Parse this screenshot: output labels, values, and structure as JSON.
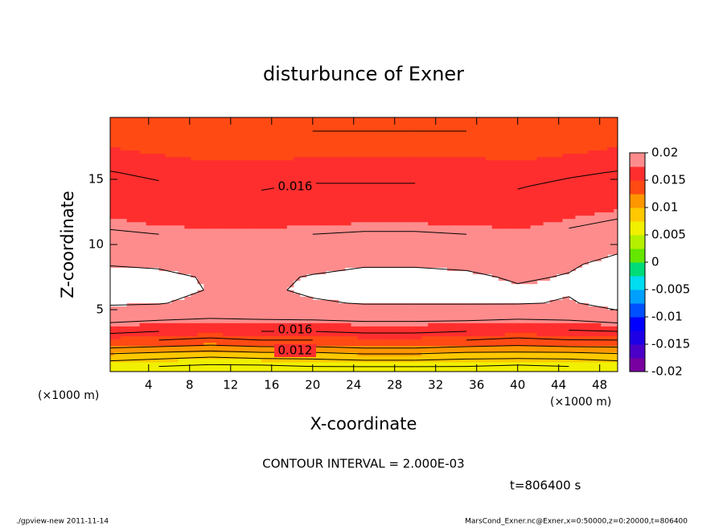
{
  "chart_data": {
    "type": "contour",
    "title": "disturbunce of Exner",
    "xlabel": "X-coordinate",
    "ylabel": "Z-coordinate",
    "x_unit": "(×1000 m)",
    "contour_interval_text": "CONTOUR INTERVAL = 2.000E-03",
    "time_text": "t=806400 s",
    "footer_left": "./gpview-new  2011-11-14",
    "footer_right": "MarsCond_Exner.nc@Exner,x=0:50000,z=0:20000,t=806400",
    "xlim": [
      0.25,
      49.75
    ],
    "ylim": [
      0.25,
      19.75
    ],
    "xticks": [
      4,
      8,
      12,
      16,
      20,
      24,
      28,
      32,
      36,
      40,
      44,
      48
    ],
    "yticks": [
      5,
      10,
      15
    ],
    "x": [
      0,
      5,
      10,
      15,
      20,
      25,
      30,
      35,
      40,
      45,
      50
    ],
    "z": [
      0.5,
      1.5,
      2.5,
      3.5,
      4.5,
      5.5,
      6.5,
      7.5,
      8.5,
      9.5,
      10.5,
      11.5,
      12.5,
      13.5,
      14.5,
      15.5,
      16.5,
      17.5,
      18.5,
      19.5
    ],
    "values": [
      [
        0.006,
        0.0055,
        0.005,
        0.005,
        0.0055,
        0.0055,
        0.0055,
        0.0055,
        0.005,
        0.0055,
        0.006
      ],
      [
        0.0095,
        0.009,
        0.0085,
        0.009,
        0.009,
        0.0095,
        0.0095,
        0.009,
        0.009,
        0.009,
        0.0095
      ],
      [
        0.014,
        0.0135,
        0.013,
        0.0135,
        0.0135,
        0.014,
        0.014,
        0.0135,
        0.013,
        0.0135,
        0.0135
      ],
      [
        0.017,
        0.0165,
        0.016,
        0.0165,
        0.0165,
        0.0168,
        0.0168,
        0.0165,
        0.016,
        0.0162,
        0.0165
      ],
      [
        0.019,
        0.0187,
        0.0184,
        0.0185,
        0.0186,
        0.0188,
        0.0188,
        0.0188,
        0.0186,
        0.0188,
        0.0197
      ],
      [
        0.0202,
        0.0201,
        0.0195,
        0.0193,
        0.0198,
        0.0201,
        0.0201,
        0.0201,
        0.0201,
        0.0199,
        0.0204
      ],
      [
        0.0208,
        0.0207,
        0.0199,
        0.0197,
        0.0203,
        0.0206,
        0.0206,
        0.0205,
        0.0202,
        0.0201,
        0.0208
      ],
      [
        0.0207,
        0.0205,
        0.0198,
        0.0197,
        0.0201,
        0.0206,
        0.0206,
        0.0203,
        0.0198,
        0.0201,
        0.0208
      ],
      [
        0.0199,
        0.0197,
        0.0194,
        0.0193,
        0.0196,
        0.0198,
        0.0198,
        0.0197,
        0.0194,
        0.0198,
        0.0205
      ],
      [
        0.0192,
        0.019,
        0.0188,
        0.0187,
        0.019,
        0.0192,
        0.0192,
        0.019,
        0.0188,
        0.0193,
        0.0199
      ],
      [
        0.0184,
        0.0182,
        0.018,
        0.018,
        0.0182,
        0.0184,
        0.0184,
        0.0182,
        0.018,
        0.0186,
        0.0192
      ],
      [
        0.0178,
        0.0175,
        0.0173,
        0.0173,
        0.0175,
        0.0176,
        0.0176,
        0.0175,
        0.0173,
        0.0178,
        0.0184
      ],
      [
        0.0173,
        0.0169,
        0.0167,
        0.0167,
        0.0169,
        0.017,
        0.017,
        0.0169,
        0.0167,
        0.0172,
        0.0176
      ],
      [
        0.0169,
        0.0165,
        0.0163,
        0.0162,
        0.0164,
        0.0165,
        0.0165,
        0.0164,
        0.0163,
        0.0167,
        0.0171
      ],
      [
        0.0166,
        0.0162,
        0.016,
        0.0159,
        0.0161,
        0.0161,
        0.0161,
        0.016,
        0.0159,
        0.0163,
        0.0166
      ],
      [
        0.0161,
        0.0157,
        0.0155,
        0.0155,
        0.0156,
        0.0156,
        0.0156,
        0.0156,
        0.0155,
        0.0158,
        0.0161
      ],
      [
        0.0155,
        0.0152,
        0.015,
        0.015,
        0.0151,
        0.0151,
        0.0151,
        0.0151,
        0.015,
        0.0152,
        0.0155
      ],
      [
        0.015,
        0.0147,
        0.0145,
        0.0145,
        0.0146,
        0.0146,
        0.0146,
        0.0146,
        0.0145,
        0.0147,
        0.015
      ],
      [
        0.0145,
        0.0142,
        0.014,
        0.014,
        0.0141,
        0.0141,
        0.0141,
        0.0141,
        0.014,
        0.0142,
        0.0145
      ],
      [
        0.014,
        0.0137,
        0.0135,
        0.0135,
        0.0136,
        0.0136,
        0.0136,
        0.0136,
        0.0135,
        0.0137,
        0.014
      ]
    ],
    "levels": [
      -0.02,
      -0.0175,
      -0.015,
      -0.0125,
      -0.01,
      -0.0075,
      -0.005,
      -0.0025,
      0,
      0.0025,
      0.005,
      0.0075,
      0.01,
      0.0125,
      0.015,
      0.0175,
      0.02
    ],
    "colors": [
      "#7800a0",
      "#4b00c8",
      "#1e00e6",
      "#0000ff",
      "#0050ff",
      "#00a0ff",
      "#00dcf0",
      "#00dc78",
      "#64e600",
      "#b4f000",
      "#f0f000",
      "#ffc800",
      "#ff9600",
      "#ff4a14",
      "#ff2e2e",
      "#ff8c8c"
    ],
    "colorbar_ticks": [
      0.02,
      0.015,
      0.01,
      0.005,
      0,
      -0.005,
      -0.01,
      -0.015,
      -0.02
    ],
    "contour_levels": [
      0.004,
      0.006,
      0.008,
      0.01,
      0.012,
      0.014,
      0.016,
      0.018,
      0.02
    ],
    "contour_labels": [
      0.016,
      0.016,
      0.012
    ]
  }
}
